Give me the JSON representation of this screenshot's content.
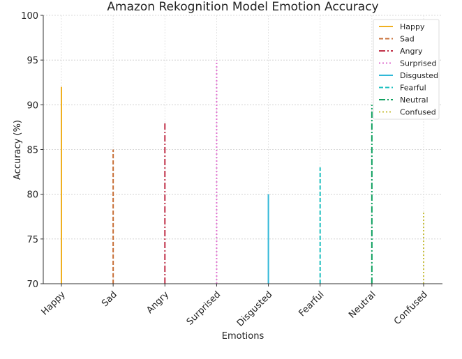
{
  "chart_data": {
    "type": "line",
    "title": "Amazon Rekognition Model Emotion Accuracy",
    "xlabel": "Emotions",
    "ylabel": "Accuracy (%)",
    "ylim": [
      70,
      100
    ],
    "yticks": [
      70,
      75,
      80,
      85,
      90,
      95,
      100
    ],
    "grid": true,
    "legend_position": "top-right",
    "categories": [
      "Happy",
      "Sad",
      "Angry",
      "Surprised",
      "Disgusted",
      "Fearful",
      "Neutral",
      "Confused"
    ],
    "series": [
      {
        "name": "Happy",
        "value": 92,
        "color": "#f0b020",
        "style": "solid"
      },
      {
        "name": "Sad",
        "value": 85,
        "color": "#c87038",
        "style": "dashed"
      },
      {
        "name": "Angry",
        "value": 88,
        "color": "#c03048",
        "style": "dashdot"
      },
      {
        "name": "Surprised",
        "value": 95,
        "color": "#e070d0",
        "style": "dotted"
      },
      {
        "name": "Disgusted",
        "value": 80,
        "color": "#30b8d8",
        "style": "solid"
      },
      {
        "name": "Fearful",
        "value": 83,
        "color": "#20c0c0",
        "style": "dashed"
      },
      {
        "name": "Neutral",
        "value": 90,
        "color": "#10a060",
        "style": "dashdot"
      },
      {
        "name": "Confused",
        "value": 78,
        "color": "#c8c040",
        "style": "dotted"
      }
    ]
  }
}
